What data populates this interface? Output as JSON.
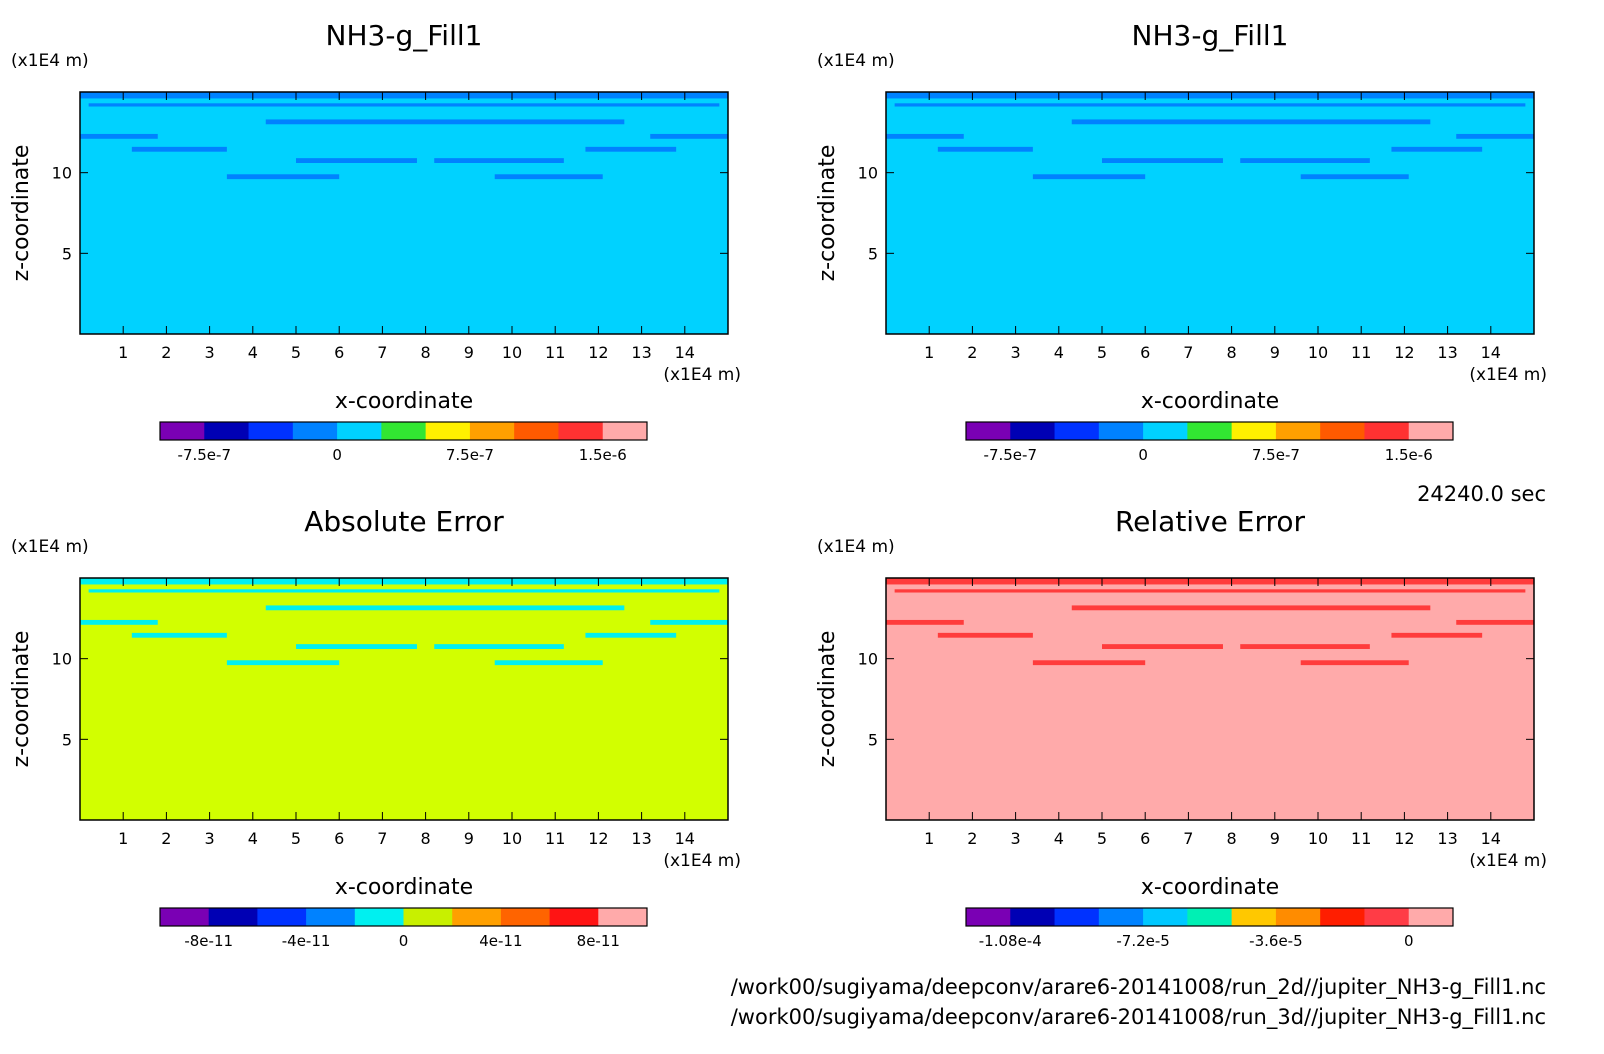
{
  "chart_data": [
    {
      "type": "heatmap",
      "title": "NH3-g_Fill1",
      "xlabel": "x-coordinate",
      "ylabel": "z-coordinate",
      "x_unit": "(x1E4 m)",
      "y_unit": "(x1E4 m)",
      "xlim": [
        0,
        15
      ],
      "ylim": [
        0,
        15
      ],
      "xticks": [
        "1",
        "2",
        "3",
        "4",
        "5",
        "6",
        "7",
        "8",
        "9",
        "10",
        "11",
        "12",
        "13",
        "14"
      ],
      "yticks": [
        "5",
        "10"
      ],
      "background_color": "#00d2ff",
      "band_color": "#0082ff",
      "colorbar": {
        "colors": [
          "#7a00b4",
          "#0000b4",
          "#0032ff",
          "#0082ff",
          "#00d2ff",
          "#32e632",
          "#fff000",
          "#ffa000",
          "#ff5a00",
          "#ff3232",
          "#ffaaaa"
        ],
        "tick_labels": [
          "-7.5e-7",
          "0",
          "7.5e-7",
          "1.5e-6"
        ]
      }
    },
    {
      "type": "heatmap",
      "title": "NH3-g_Fill1",
      "xlabel": "x-coordinate",
      "ylabel": "z-coordinate",
      "x_unit": "(x1E4 m)",
      "y_unit": "(x1E4 m)",
      "xlim": [
        0,
        15
      ],
      "ylim": [
        0,
        15
      ],
      "xticks": [
        "1",
        "2",
        "3",
        "4",
        "5",
        "6",
        "7",
        "8",
        "9",
        "10",
        "11",
        "12",
        "13",
        "14"
      ],
      "yticks": [
        "5",
        "10"
      ],
      "background_color": "#00d2ff",
      "band_color": "#0082ff",
      "colorbar": {
        "colors": [
          "#7a00b4",
          "#0000b4",
          "#0032ff",
          "#0082ff",
          "#00d2ff",
          "#32e632",
          "#fff000",
          "#ffa000",
          "#ff5a00",
          "#ff3232",
          "#ffaaaa"
        ],
        "tick_labels": [
          "-7.5e-7",
          "0",
          "7.5e-7",
          "1.5e-6"
        ]
      }
    },
    {
      "type": "heatmap",
      "title": "Absolute Error",
      "xlabel": "x-coordinate",
      "ylabel": "z-coordinate",
      "x_unit": "(x1E4 m)",
      "y_unit": "(x1E4 m)",
      "xlim": [
        0,
        15
      ],
      "ylim": [
        0,
        15
      ],
      "xticks": [
        "1",
        "2",
        "3",
        "4",
        "5",
        "6",
        "7",
        "8",
        "9",
        "10",
        "11",
        "12",
        "13",
        "14"
      ],
      "yticks": [
        "5",
        "10"
      ],
      "background_color": "#d2ff00",
      "band_color": "#00f0f0",
      "colorbar": {
        "colors": [
          "#7a00b4",
          "#0000b4",
          "#0032ff",
          "#0082ff",
          "#00f0f0",
          "#c8f000",
          "#ffa000",
          "#ff6400",
          "#ff1414",
          "#ffaaaa"
        ],
        "tick_labels": [
          "-8e-11",
          "-4e-11",
          "0",
          "4e-11",
          "8e-11"
        ]
      }
    },
    {
      "type": "heatmap",
      "title": "Relative Error",
      "xlabel": "x-coordinate",
      "ylabel": "z-coordinate",
      "x_unit": "(x1E4 m)",
      "y_unit": "(x1E4 m)",
      "xlim": [
        0,
        15
      ],
      "ylim": [
        0,
        15
      ],
      "xticks": [
        "1",
        "2",
        "3",
        "4",
        "5",
        "6",
        "7",
        "8",
        "9",
        "10",
        "11",
        "12",
        "13",
        "14"
      ],
      "yticks": [
        "5",
        "10"
      ],
      "background_color": "#ffaaaa",
      "band_color": "#ff3c3c",
      "colorbar": {
        "colors": [
          "#7a00b4",
          "#0000b4",
          "#0032ff",
          "#0082ff",
          "#00c8ff",
          "#00f0b4",
          "#ffc800",
          "#ff8c00",
          "#ff1e00",
          "#ff3c46",
          "#ffaaaa"
        ],
        "tick_labels": [
          "-1.08e-4",
          "-7.2e-5",
          "-3.6e-5",
          "0"
        ]
      }
    }
  ],
  "time_label": "24240.0 sec",
  "file_paths": [
    "/work00/sugiyama/deepconv/arare6-20141008/run_2d//jupiter_NH3-g_Fill1.nc",
    "/work00/sugiyama/deepconv/arare6-20141008/run_3d//jupiter_NH3-g_Fill1.nc"
  ]
}
